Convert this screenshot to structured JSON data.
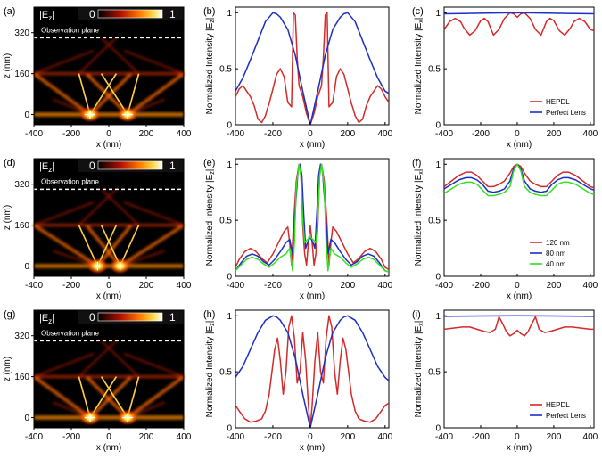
{
  "colors": {
    "hepdl": "#d42a2a",
    "perfect_lens": "#1b2fc4",
    "green": "#32e020",
    "hot_dark": "#000000",
    "hot_mid": "#cc1a00",
    "hot_bright": "#ffe84a"
  },
  "panel_labels": [
    "(a)",
    "(b)",
    "(c)",
    "(d)",
    "(e)",
    "(f)",
    "(g)",
    "(h)",
    "(i)"
  ],
  "common": {
    "x_label": "x (nm)",
    "z_label": "z (nm)",
    "obs_plane": "Observation plane",
    "ez_symbol": "|E",
    "ez_sub": "z",
    "cbar_min": "0",
    "cbar_max": "1",
    "ylabel_z_pre": "Normalized Intensity |E",
    "ylabel_x_pre": "Normalized Intensity |E",
    "sub_z": "z",
    "sub_x": "x",
    "ylabel_post": "|",
    "x_ticks": [
      "-400",
      "-200",
      "0",
      "200",
      "400"
    ],
    "z_ticks": [
      "320",
      "160",
      "0"
    ],
    "y_ticks": [
      "0",
      "0.5",
      "1"
    ]
  },
  "chart_data": [
    {
      "id": "a",
      "type": "heatmap",
      "row": 0,
      "field_map": "|Ez|",
      "xlim": [
        -400,
        400
      ],
      "zlim": [
        -40,
        420
      ],
      "observation_plane_z": 300,
      "source_x": [
        -100,
        100
      ]
    },
    {
      "id": "b",
      "type": "line",
      "row": 0,
      "quantity": "z",
      "xlim": [
        -400,
        420
      ],
      "ylim": [
        0,
        1.05
      ],
      "series": [
        {
          "color_key": "hepdl",
          "x": [
            -400,
            -380,
            -360,
            -340,
            -320,
            -300,
            -280,
            -260,
            -240,
            -230,
            -220,
            -200,
            -180,
            -160,
            -140,
            -120,
            -110,
            -100,
            -90,
            -80,
            -70,
            -60,
            -40,
            -20,
            0,
            20,
            40,
            60,
            70,
            80,
            90,
            100,
            110,
            120,
            140,
            160,
            180,
            200,
            220,
            230,
            240,
            260,
            280,
            300,
            320,
            340,
            360,
            380,
            400,
            420
          ],
          "y": [
            0.25,
            0.32,
            0.35,
            0.3,
            0.25,
            0.17,
            0.05,
            0.02,
            0.08,
            0.14,
            0.19,
            0.32,
            0.45,
            0.5,
            0.43,
            0.2,
            0.18,
            0.16,
            1.0,
            0.98,
            0.6,
            0.35,
            0.25,
            0.1,
            0.0,
            0.1,
            0.25,
            0.35,
            0.6,
            0.98,
            1.0,
            0.16,
            0.18,
            0.2,
            0.43,
            0.5,
            0.45,
            0.32,
            0.19,
            0.14,
            0.08,
            0.02,
            0.05,
            0.17,
            0.25,
            0.3,
            0.35,
            0.32,
            0.25,
            0.2
          ]
        },
        {
          "color_key": "perfect_lens",
          "x": [
            -400,
            -360,
            -320,
            -280,
            -240,
            -200,
            -180,
            -160,
            -120,
            -80,
            -40,
            0,
            40,
            80,
            120,
            160,
            180,
            200,
            240,
            280,
            320,
            360,
            400,
            420
          ],
          "y": [
            0.3,
            0.42,
            0.58,
            0.75,
            0.92,
            1.0,
            0.99,
            0.96,
            0.85,
            0.62,
            0.3,
            0.0,
            0.3,
            0.62,
            0.85,
            0.96,
            0.99,
            1.0,
            0.92,
            0.75,
            0.58,
            0.42,
            0.3,
            0.28
          ]
        }
      ]
    },
    {
      "id": "c",
      "type": "line",
      "row": 0,
      "quantity": "x",
      "xlim": [
        -400,
        420
      ],
      "ylim": [
        0,
        1.05
      ],
      "series": [
        {
          "name": "HEPDL",
          "color_key": "hepdl",
          "x": [
            -400,
            -370,
            -340,
            -310,
            -290,
            -260,
            -230,
            -200,
            -180,
            -160,
            -130,
            -100,
            -70,
            -40,
            -20,
            0,
            20,
            40,
            70,
            100,
            130,
            160,
            180,
            200,
            230,
            260,
            290,
            310,
            340,
            370,
            400,
            420
          ],
          "y": [
            0.85,
            0.92,
            0.95,
            0.92,
            0.86,
            0.8,
            0.84,
            0.93,
            0.95,
            0.92,
            0.8,
            0.85,
            0.95,
            1.0,
            0.99,
            0.96,
            0.99,
            1.0,
            0.95,
            0.85,
            0.8,
            0.92,
            0.95,
            0.93,
            0.84,
            0.8,
            0.86,
            0.92,
            0.95,
            0.92,
            0.85,
            0.84
          ]
        },
        {
          "name": "Perfect Lens",
          "color_key": "perfect_lens",
          "x": [
            -400,
            -200,
            0,
            200,
            420
          ],
          "y": [
            0.99,
            0.995,
            1.0,
            0.995,
            0.99
          ]
        }
      ],
      "legend": {
        "position": "lower-right"
      }
    },
    {
      "id": "d",
      "type": "heatmap",
      "row": 1,
      "field_map": "|Ez|",
      "xlim": [
        -400,
        400
      ],
      "zlim": [
        -40,
        420
      ],
      "observation_plane_z": 300,
      "source_x": [
        -60,
        60
      ]
    },
    {
      "id": "e",
      "type": "line",
      "row": 1,
      "quantity": "z",
      "xlim": [
        -400,
        420
      ],
      "ylim": [
        0,
        1.05
      ],
      "series": [
        {
          "color_key": "hepdl",
          "x": [
            -400,
            -380,
            -350,
            -320,
            -290,
            -260,
            -230,
            -200,
            -170,
            -140,
            -120,
            -110,
            -100,
            -90,
            -75,
            -60,
            -50,
            -40,
            -30,
            -20,
            -10,
            0,
            10,
            20,
            30,
            40,
            50,
            60,
            75,
            90,
            100,
            110,
            120,
            140,
            170,
            200,
            230,
            260,
            290,
            320,
            350,
            380,
            400,
            420
          ],
          "y": [
            0.08,
            0.15,
            0.22,
            0.25,
            0.22,
            0.16,
            0.12,
            0.2,
            0.3,
            0.4,
            0.44,
            0.3,
            0.1,
            0.45,
            0.85,
            1.0,
            0.9,
            0.45,
            0.2,
            0.1,
            0.3,
            0.45,
            0.3,
            0.1,
            0.2,
            0.45,
            0.9,
            1.0,
            0.85,
            0.45,
            0.1,
            0.3,
            0.44,
            0.4,
            0.3,
            0.2,
            0.12,
            0.16,
            0.22,
            0.25,
            0.22,
            0.15,
            0.08,
            0.06
          ]
        },
        {
          "color_key": "perfect_lens",
          "x": [
            -400,
            -370,
            -340,
            -310,
            -280,
            -250,
            -220,
            -190,
            -160,
            -130,
            -110,
            -95,
            -80,
            -65,
            -55,
            -45,
            -35,
            -25,
            -15,
            0,
            15,
            25,
            35,
            45,
            55,
            65,
            80,
            95,
            110,
            130,
            160,
            190,
            220,
            250,
            280,
            310,
            340,
            370,
            400,
            420
          ],
          "y": [
            0.05,
            0.12,
            0.18,
            0.2,
            0.18,
            0.13,
            0.1,
            0.15,
            0.22,
            0.3,
            0.33,
            0.2,
            0.6,
            0.95,
            1.0,
            0.9,
            0.55,
            0.25,
            0.3,
            0.35,
            0.3,
            0.25,
            0.55,
            0.9,
            1.0,
            0.95,
            0.6,
            0.2,
            0.33,
            0.3,
            0.22,
            0.15,
            0.1,
            0.13,
            0.18,
            0.2,
            0.18,
            0.12,
            0.05,
            0.04
          ]
        },
        {
          "color_key": "green",
          "x": [
            -400,
            -370,
            -340,
            -310,
            -280,
            -250,
            -220,
            -190,
            -160,
            -130,
            -110,
            -95,
            -85,
            -75,
            -60,
            -50,
            -40,
            -30,
            -20,
            0,
            20,
            30,
            40,
            50,
            60,
            75,
            85,
            95,
            110,
            130,
            160,
            190,
            220,
            250,
            280,
            310,
            340,
            370,
            400,
            420
          ],
          "y": [
            0.05,
            0.1,
            0.15,
            0.17,
            0.15,
            0.11,
            0.08,
            0.12,
            0.17,
            0.2,
            0.25,
            0.05,
            0.3,
            0.8,
            1.0,
            0.9,
            0.5,
            0.3,
            0.32,
            0.35,
            0.32,
            0.3,
            0.5,
            0.9,
            1.0,
            0.8,
            0.3,
            0.05,
            0.25,
            0.2,
            0.17,
            0.12,
            0.08,
            0.11,
            0.15,
            0.17,
            0.15,
            0.1,
            0.05,
            0.04
          ]
        }
      ]
    },
    {
      "id": "f",
      "type": "line",
      "row": 1,
      "quantity": "x",
      "xlim": [
        -400,
        420
      ],
      "ylim": [
        0,
        1.05
      ],
      "series": [
        {
          "name": "120 nm",
          "color_key": "hepdl",
          "x": [
            -400,
            -360,
            -320,
            -280,
            -250,
            -220,
            -190,
            -160,
            -130,
            -100,
            -70,
            -40,
            -20,
            0,
            20,
            40,
            70,
            100,
            130,
            160,
            190,
            220,
            250,
            280,
            320,
            360,
            400,
            420
          ],
          "y": [
            0.8,
            0.85,
            0.9,
            0.93,
            0.93,
            0.9,
            0.85,
            0.8,
            0.8,
            0.82,
            0.85,
            0.92,
            0.98,
            1.0,
            0.98,
            0.92,
            0.85,
            0.82,
            0.8,
            0.8,
            0.85,
            0.9,
            0.93,
            0.93,
            0.9,
            0.85,
            0.8,
            0.79
          ]
        },
        {
          "name": "80 nm",
          "color_key": "perfect_lens",
          "x": [
            -400,
            -360,
            -320,
            -280,
            -250,
            -220,
            -190,
            -160,
            -130,
            -100,
            -70,
            -40,
            -20,
            0,
            20,
            40,
            70,
            100,
            130,
            160,
            190,
            220,
            250,
            280,
            320,
            360,
            400,
            420
          ],
          "y": [
            0.78,
            0.82,
            0.86,
            0.88,
            0.88,
            0.86,
            0.82,
            0.76,
            0.75,
            0.76,
            0.78,
            0.85,
            0.96,
            1.0,
            0.96,
            0.85,
            0.78,
            0.76,
            0.75,
            0.76,
            0.82,
            0.86,
            0.88,
            0.88,
            0.86,
            0.82,
            0.78,
            0.77
          ]
        },
        {
          "name": "40 nm",
          "color_key": "green",
          "x": [
            -400,
            -360,
            -320,
            -280,
            -250,
            -220,
            -190,
            -160,
            -130,
            -100,
            -70,
            -40,
            -20,
            0,
            20,
            40,
            70,
            100,
            130,
            160,
            190,
            220,
            250,
            280,
            320,
            360,
            400,
            420
          ],
          "y": [
            0.74,
            0.78,
            0.82,
            0.84,
            0.84,
            0.82,
            0.77,
            0.72,
            0.72,
            0.73,
            0.75,
            0.8,
            0.94,
            1.0,
            0.94,
            0.8,
            0.75,
            0.73,
            0.72,
            0.72,
            0.77,
            0.82,
            0.84,
            0.84,
            0.82,
            0.78,
            0.74,
            0.73
          ]
        }
      ],
      "legend": {
        "position": "lower-right"
      }
    },
    {
      "id": "g",
      "type": "heatmap",
      "row": 2,
      "field_map": "|Ez|",
      "xlim": [
        -400,
        400
      ],
      "zlim": [
        -40,
        420
      ],
      "observation_plane_z": 300,
      "source_x": [
        -100,
        100
      ]
    },
    {
      "id": "h",
      "type": "line",
      "row": 2,
      "quantity": "z",
      "xlim": [
        -400,
        420
      ],
      "ylim": [
        0,
        1.05
      ],
      "series": [
        {
          "color_key": "hepdl",
          "x": [
            -400,
            -380,
            -350,
            -320,
            -290,
            -260,
            -240,
            -220,
            -205,
            -190,
            -175,
            -160,
            -145,
            -130,
            -115,
            -100,
            -85,
            -70,
            -55,
            -40,
            -25,
            -10,
            0,
            10,
            25,
            40,
            55,
            70,
            85,
            100,
            115,
            130,
            145,
            160,
            175,
            190,
            205,
            220,
            240,
            260,
            290,
            320,
            350,
            380,
            400,
            420
          ],
          "y": [
            0.2,
            0.15,
            0.08,
            0.05,
            0.06,
            0.08,
            0.15,
            0.3,
            0.5,
            0.7,
            0.8,
            0.6,
            0.3,
            0.5,
            0.9,
            1.0,
            0.8,
            0.4,
            0.5,
            0.85,
            0.6,
            0.2,
            0.0,
            0.2,
            0.6,
            0.85,
            0.5,
            0.4,
            0.8,
            1.0,
            0.9,
            0.5,
            0.3,
            0.6,
            0.8,
            0.7,
            0.5,
            0.3,
            0.15,
            0.08,
            0.06,
            0.05,
            0.08,
            0.15,
            0.2,
            0.22
          ]
        },
        {
          "color_key": "perfect_lens",
          "x": [
            -400,
            -360,
            -320,
            -280,
            -240,
            -200,
            -180,
            -160,
            -120,
            -80,
            -40,
            0,
            40,
            80,
            120,
            160,
            180,
            200,
            240,
            280,
            320,
            360,
            400,
            420
          ],
          "y": [
            0.45,
            0.55,
            0.7,
            0.85,
            0.96,
            1.0,
            0.99,
            0.96,
            0.85,
            0.62,
            0.3,
            0.0,
            0.3,
            0.62,
            0.85,
            0.96,
            0.99,
            1.0,
            0.96,
            0.85,
            0.7,
            0.55,
            0.45,
            0.42
          ]
        }
      ]
    },
    {
      "id": "i",
      "type": "line",
      "row": 2,
      "quantity": "x",
      "xlim": [
        -400,
        420
      ],
      "ylim": [
        0,
        1.05
      ],
      "series": [
        {
          "name": "HEPDL",
          "color_key": "hepdl",
          "x": [
            -400,
            -350,
            -300,
            -260,
            -220,
            -180,
            -150,
            -120,
            -100,
            -80,
            -60,
            -40,
            -20,
            0,
            20,
            40,
            60,
            80,
            100,
            120,
            150,
            180,
            220,
            260,
            300,
            350,
            400,
            420
          ],
          "y": [
            0.88,
            0.89,
            0.9,
            0.9,
            0.88,
            0.86,
            0.85,
            0.88,
            0.99,
            0.93,
            0.86,
            0.82,
            0.84,
            0.87,
            0.84,
            0.82,
            0.86,
            0.93,
            0.99,
            0.88,
            0.85,
            0.86,
            0.88,
            0.9,
            0.9,
            0.89,
            0.88,
            0.88
          ]
        },
        {
          "name": "Perfect Lens",
          "color_key": "perfect_lens",
          "x": [
            -400,
            -200,
            0,
            200,
            420
          ],
          "y": [
            0.995,
            0.998,
            1.0,
            0.998,
            0.995
          ]
        }
      ],
      "legend": {
        "position": "lower-right"
      }
    }
  ]
}
